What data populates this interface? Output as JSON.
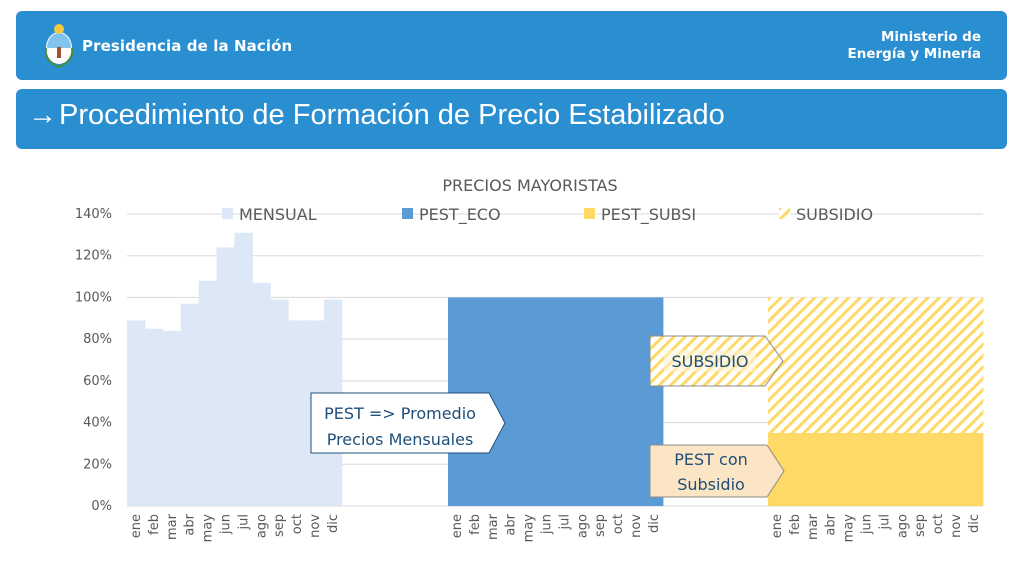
{
  "header": {
    "gov_name": "Presidencia de la Nación",
    "ministry_line1": "Ministerio de",
    "ministry_line2": "Energía y Minería",
    "crest_icon": "argentina-coat-of-arms-icon"
  },
  "slide": {
    "arrow": "→",
    "title": "Procedimiento de Formación de Precio Estabilizado"
  },
  "chart_data": {
    "type": "bar",
    "title": "PRECIOS MAYORISTAS",
    "ylim": [
      0,
      140
    ],
    "yticks": [
      "0%",
      "20%",
      "40%",
      "60%",
      "80%",
      "100%",
      "120%",
      "140%"
    ],
    "grid": true,
    "legend_position": "top",
    "categories": [
      "ene",
      "feb",
      "mar",
      "abr",
      "may",
      "jun",
      "jul",
      "ago",
      "sep",
      "oct",
      "nov",
      "dic"
    ],
    "legend": [
      {
        "name": "MENSUAL",
        "color": "#dce8f5",
        "pattern": false
      },
      {
        "name": "PEST_ECO",
        "color": "#5b9bd5",
        "pattern": false
      },
      {
        "name": "PEST_SUBSI",
        "color": "#ffd966",
        "pattern": false
      },
      {
        "name": "SUBSIDIO",
        "color": "#ffd966",
        "pattern": true
      }
    ],
    "groups": [
      {
        "series": "MENSUAL",
        "values": [
          89,
          85,
          84,
          97,
          108,
          124,
          131,
          107,
          99,
          89,
          89,
          99
        ]
      },
      {
        "series": "PEST_ECO",
        "values": [
          100,
          100,
          100,
          100,
          100,
          100,
          100,
          100,
          100,
          100,
          100,
          100
        ]
      },
      {
        "series": "PEST_SUBSI",
        "values": [
          35,
          35,
          35,
          35,
          35,
          35,
          35,
          35,
          35,
          35,
          35,
          35
        ],
        "stacked_series": "SUBSIDIO",
        "stacked_values": [
          65,
          65,
          65,
          65,
          65,
          65,
          65,
          65,
          65,
          65,
          65,
          65
        ]
      }
    ]
  },
  "callouts": {
    "pest_line1": "PEST => Promedio",
    "pest_line2": "Precios Mensuales",
    "subsidio": "SUBSIDIO",
    "pest_con_line1": "PEST con",
    "pest_con_line2": "Subsidio"
  },
  "colors": {
    "brand_blue": "#2a8fd1",
    "mensual": "#dce8f5",
    "pest_eco": "#5b9bd5",
    "pest_subsi": "#ffd966",
    "subsidio_stripe": "#ffd966",
    "callout_fill": "#fbe5c4",
    "callout_border": "#1f4e79",
    "callout_text": "#1f4e79",
    "axis_text": "#595959"
  }
}
